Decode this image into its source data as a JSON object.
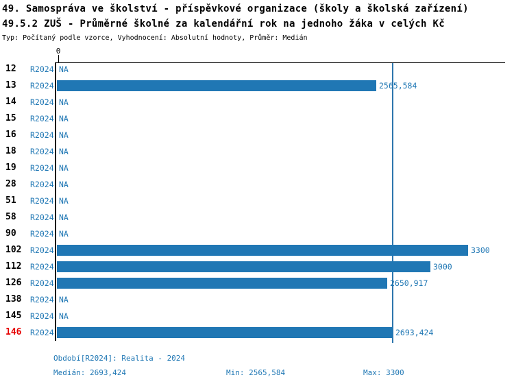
{
  "header": {
    "title_line1": "49. Samospráva ve školství - příspěvkové organizace (školy a školská zařízení)",
    "title_line2": "49.5.2 ZUŠ - Průměrné školné za kalendářní rok na jednoho žáka v celých Kč",
    "subtitle": "Typ: Počítaný podle vzorce, Vyhodnocení: Absolutní hodnoty, Průměr: Medián"
  },
  "chart_data": {
    "type": "bar",
    "orientation": "horizontal",
    "title": "49.5.2 ZUŠ - Průměrné školné za kalendářní rok na jednoho žáka v celých Kč",
    "xlim": [
      0,
      3300
    ],
    "x_tick_labels": [
      "0"
    ],
    "grid": false,
    "period_label": "R2024",
    "categories": [
      "12",
      "13",
      "14",
      "15",
      "16",
      "18",
      "19",
      "28",
      "51",
      "58",
      "90",
      "102",
      "112",
      "126",
      "138",
      "145",
      "146"
    ],
    "values": [
      null,
      2565.584,
      null,
      null,
      null,
      null,
      null,
      null,
      null,
      null,
      null,
      3300,
      3000,
      2650.917,
      null,
      null,
      2693.424
    ],
    "value_labels": [
      "NA",
      "2565,584",
      "NA",
      "NA",
      "NA",
      "NA",
      "NA",
      "NA",
      "NA",
      "NA",
      "NA",
      "3300",
      "3000",
      "2650,917",
      "NA",
      "NA",
      "2693,424"
    ],
    "na_label": "NA",
    "highlighted_category": "146",
    "median_value": 2693.424,
    "median_line": true
  },
  "footer": {
    "period": "Období[R2024]: Realita - 2024",
    "median": "Medián: 2693,424",
    "min": "Min: 2565,584",
    "max": "Max: 3300"
  },
  "colors": {
    "bar": "#2077b4",
    "blue_text": "#1f77b4",
    "highlight_red": "#e60000",
    "median_line": "#2d76ad",
    "axis": "#000000"
  }
}
